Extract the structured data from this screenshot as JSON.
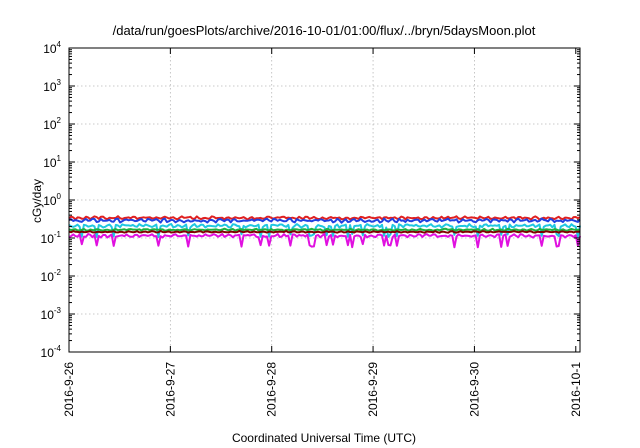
{
  "chart_data": {
    "type": "line",
    "title": "/data/run/goesPlots/archive/2016-10-01/01:00/flux/../bryn/5daysMoon.plot",
    "xlabel": "Coordinated Universal Time (UTC)",
    "ylabel": "cGy/day",
    "yscale": "log",
    "ylim": [
      0.0001,
      10000
    ],
    "y_ticks": [
      {
        "base": "10",
        "exp": "-4",
        "value": 0.0001
      },
      {
        "base": "10",
        "exp": "-3",
        "value": 0.001
      },
      {
        "base": "10",
        "exp": "-2",
        "value": 0.01
      },
      {
        "base": "10",
        "exp": "-1",
        "value": 0.1
      },
      {
        "base": "10",
        "exp": "0",
        "value": 1
      },
      {
        "base": "10",
        "exp": "1",
        "value": 10
      },
      {
        "base": "10",
        "exp": "2",
        "value": 100
      },
      {
        "base": "10",
        "exp": "3",
        "value": 1000
      },
      {
        "base": "10",
        "exp": "4",
        "value": 10000
      }
    ],
    "x_ticks": [
      "2016-9-26",
      "2016-9-27",
      "2016-9-28",
      "2016-9-29",
      "2016-9-30",
      "2016-10-1"
    ],
    "xlim": [
      "2016-09-26T00:00",
      "2016-10-01T01:00"
    ],
    "grid": true,
    "series": [
      {
        "color": "#e02020",
        "level": 0.34,
        "variation": 0.08,
        "dips": false
      },
      {
        "color": "#2040e0",
        "level": 0.29,
        "variation": 0.1,
        "dips": false
      },
      {
        "color": "#20c8e0",
        "level": 0.21,
        "variation": 0.09,
        "dips": true
      },
      {
        "color": "#20b040",
        "level": 0.165,
        "variation": 0.05,
        "dips": false
      },
      {
        "color": "#800000",
        "level": 0.145,
        "variation": 0.04,
        "dips": false
      },
      {
        "color": "#e010e0",
        "level": 0.115,
        "variation": 0.09,
        "dips": true
      }
    ]
  }
}
